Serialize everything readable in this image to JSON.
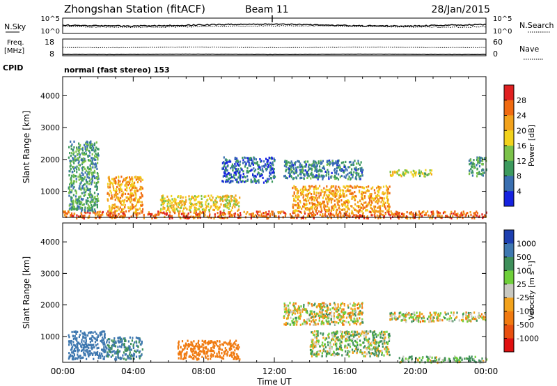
{
  "header": {
    "title": "Zhongshan Station (fitACF)",
    "beam": "Beam 11",
    "date": "28/Jan/2015"
  },
  "panels": {
    "nsky": {
      "label": "N.Sky",
      "tick_top": "10^5",
      "tick_bottom": "10^0",
      "right_label": "N.Search",
      "right_tick_top": "10^5",
      "right_tick_bottom": "10^0"
    },
    "freq": {
      "label_line1": "Freq.",
      "label_line2": "[MHz]",
      "tick_top": "18",
      "tick_bottom": "8",
      "right_label": "Nave",
      "right_tick_top": "60",
      "right_tick_bottom": "0"
    },
    "cpid": {
      "label": "CPID",
      "text": "normal (fast stereo) 153"
    }
  },
  "colorbars": {
    "power": {
      "label": "Power [dB]",
      "ticks": [
        "28",
        "24",
        "20",
        "16",
        "12",
        "8",
        "4"
      ],
      "colors": [
        "#e02020",
        "#f06a10",
        "#f2a21c",
        "#f2d21c",
        "#7bc24a",
        "#3d9a5e",
        "#3a6fb0",
        "#1522e0"
      ]
    },
    "velocity": {
      "label": "Velocity [m s⁻¹]",
      "ticks": [
        "1000",
        "500",
        "100",
        "25",
        "-25",
        "-100",
        "-500",
        "-1000"
      ],
      "colors": [
        "#1d3fb0",
        "#3f78b0",
        "#3e8f5a",
        "#6fcf3a",
        "#c8c8c0",
        "#f2a21c",
        "#f07a10",
        "#e85010",
        "#e01010"
      ]
    }
  },
  "chart_data": [
    {
      "type": "heatmap",
      "title": "",
      "xlabel": "Time UT",
      "ylabel": "Slant Range [km]",
      "xlim": [
        "00:00",
        "24:00"
      ],
      "ylim": [
        180,
        4600
      ],
      "x_ticks": [
        "00:00",
        "04:00",
        "08:00",
        "12:00",
        "16:00",
        "20:00",
        "00:00"
      ],
      "y_ticks": [
        1000,
        2000,
        3000,
        4000
      ],
      "colorbar": "Power [dB]",
      "clim": [
        0,
        32
      ],
      "regions": [
        {
          "t0": 0.0,
          "t1": 24.0,
          "r0": 180,
          "r1": 400,
          "power": 26
        },
        {
          "t0": 0.3,
          "t1": 2.0,
          "r0": 400,
          "r1": 2600,
          "power": 10
        },
        {
          "t0": 2.5,
          "t1": 4.5,
          "r0": 400,
          "r1": 1500,
          "power": 22
        },
        {
          "t0": 5.5,
          "t1": 10.0,
          "r0": 400,
          "r1": 900,
          "power": 18
        },
        {
          "t0": 9.0,
          "t1": 12.0,
          "r0": 1300,
          "r1": 2100,
          "power": 6
        },
        {
          "t0": 12.5,
          "t1": 17.0,
          "r0": 1400,
          "r1": 2000,
          "power": 8
        },
        {
          "t0": 13.0,
          "t1": 18.5,
          "r0": 400,
          "r1": 1200,
          "power": 22
        },
        {
          "t0": 18.5,
          "t1": 21.0,
          "r0": 1500,
          "r1": 1700,
          "power": 16
        },
        {
          "t0": 23.0,
          "t1": 24.0,
          "r0": 1500,
          "r1": 2100,
          "power": 10
        }
      ]
    },
    {
      "type": "heatmap",
      "title": "",
      "xlabel": "Time UT",
      "ylabel": "Slant Range [km]",
      "xlim": [
        "00:00",
        "24:00"
      ],
      "ylim": [
        180,
        4600
      ],
      "x_ticks": [
        "00:00",
        "04:00",
        "08:00",
        "12:00",
        "16:00",
        "20:00",
        "00:00"
      ],
      "y_ticks": [
        1000,
        2000,
        3000,
        4000
      ],
      "colorbar": "Velocity [m s-1]",
      "clim": [
        -1000,
        1000
      ],
      "regions": [
        {
          "t0": 0.3,
          "t1": 2.5,
          "r0": 300,
          "r1": 1200,
          "velocity": 800
        },
        {
          "t0": 2.5,
          "t1": 4.5,
          "r0": 300,
          "r1": 1000,
          "velocity": 500
        },
        {
          "t0": 6.5,
          "t1": 10.0,
          "r0": 300,
          "r1": 900,
          "velocity": -300
        },
        {
          "t0": 12.5,
          "t1": 17.0,
          "r0": 1400,
          "r1": 2100,
          "velocity": 0
        },
        {
          "t0": 14.0,
          "t1": 18.5,
          "r0": 400,
          "r1": 1200,
          "velocity": 60
        },
        {
          "t0": 18.5,
          "t1": 24.0,
          "r0": 1500,
          "r1": 1800,
          "velocity": 0
        },
        {
          "t0": 19.0,
          "t1": 24.0,
          "r0": 200,
          "r1": 400,
          "velocity": 100
        }
      ]
    }
  ]
}
